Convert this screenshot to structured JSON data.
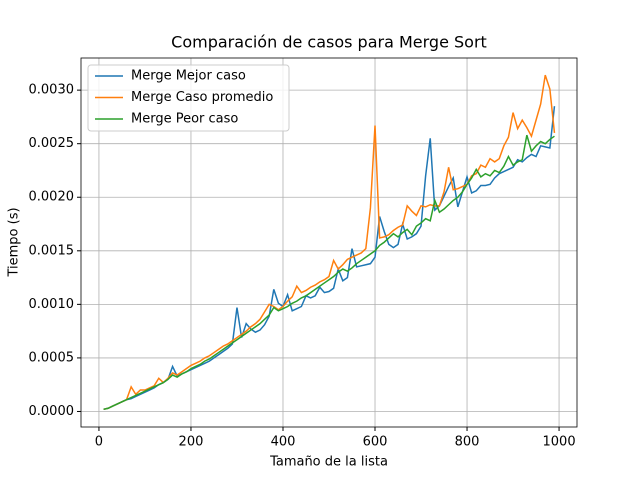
{
  "chart_data": {
    "type": "line",
    "title": "Comparación de casos para Merge Sort",
    "x_label": "Tamaño de la lista",
    "y_label": "Tiempo (s)",
    "x": [
      10,
      20,
      30,
      40,
      50,
      60,
      70,
      80,
      90,
      100,
      110,
      120,
      130,
      140,
      150,
      160,
      170,
      180,
      190,
      200,
      210,
      220,
      230,
      240,
      250,
      260,
      270,
      280,
      290,
      300,
      310,
      320,
      330,
      340,
      350,
      360,
      370,
      380,
      390,
      400,
      410,
      420,
      430,
      440,
      450,
      460,
      470,
      480,
      490,
      500,
      510,
      520,
      530,
      540,
      550,
      560,
      570,
      580,
      590,
      600,
      610,
      620,
      630,
      640,
      650,
      660,
      670,
      680,
      690,
      700,
      710,
      720,
      730,
      740,
      750,
      760,
      770,
      780,
      790,
      800,
      810,
      820,
      830,
      840,
      850,
      860,
      870,
      880,
      890,
      900,
      910,
      920,
      930,
      940,
      950,
      960,
      970,
      980,
      990
    ],
    "series": [
      {
        "name": "Merge Mejor caso",
        "color": "#1f77b4",
        "values": [
          2e-05,
          3e-05,
          5e-05,
          7e-05,
          9e-05,
          0.00011,
          0.00012,
          0.00014,
          0.00016,
          0.00018,
          0.0002,
          0.00022,
          0.00025,
          0.00027,
          0.0003,
          0.00042,
          0.00033,
          0.00035,
          0.00037,
          0.00039,
          0.00041,
          0.00043,
          0.00045,
          0.00047,
          0.0005,
          0.00053,
          0.00056,
          0.00059,
          0.00063,
          0.00097,
          0.00069,
          0.00082,
          0.00077,
          0.00074,
          0.00076,
          0.00081,
          0.00089,
          0.00114,
          0.00101,
          0.00098,
          0.00109,
          0.00094,
          0.00096,
          0.00098,
          0.00108,
          0.00106,
          0.00108,
          0.00116,
          0.00111,
          0.00112,
          0.00115,
          0.00133,
          0.00122,
          0.00125,
          0.00152,
          0.00135,
          0.00136,
          0.00137,
          0.00138,
          0.00144,
          0.00182,
          0.00168,
          0.00156,
          0.00153,
          0.00156,
          0.00175,
          0.00161,
          0.00163,
          0.00166,
          0.00173,
          0.0022,
          0.00255,
          0.00188,
          0.00192,
          0.00201,
          0.0021,
          0.00218,
          0.00191,
          0.00205,
          0.00219,
          0.00204,
          0.00206,
          0.00211,
          0.00211,
          0.00212,
          0.00218,
          0.00222,
          0.00224,
          0.00226,
          0.00228,
          0.00235,
          0.00233,
          0.00237,
          0.0024,
          0.00238,
          0.00248,
          0.00247,
          0.00246,
          0.00285
        ]
      },
      {
        "name": "Merge Caso promedio",
        "color": "#ff7f0e",
        "values": [
          2e-05,
          3e-05,
          5e-05,
          7e-05,
          9e-05,
          0.00011,
          0.00023,
          0.00016,
          0.0002,
          0.0002,
          0.00022,
          0.00024,
          0.00031,
          0.00027,
          0.00031,
          0.00036,
          0.00034,
          0.00037,
          0.0004,
          0.00043,
          0.00045,
          0.00047,
          0.0005,
          0.00052,
          0.00055,
          0.00058,
          0.00061,
          0.00063,
          0.00066,
          0.00069,
          0.00072,
          0.00075,
          0.00079,
          0.00082,
          0.00086,
          0.00093,
          0.001,
          0.00098,
          0.00095,
          0.00098,
          0.00103,
          0.00107,
          0.00117,
          0.00111,
          0.00113,
          0.00116,
          0.00118,
          0.00121,
          0.00123,
          0.00126,
          0.00141,
          0.00133,
          0.00137,
          0.00142,
          0.00144,
          0.00146,
          0.00148,
          0.00152,
          0.0019,
          0.00267,
          0.00162,
          0.00163,
          0.00165,
          0.00169,
          0.00172,
          0.00174,
          0.00192,
          0.00187,
          0.00183,
          0.00192,
          0.00191,
          0.00193,
          0.00192,
          0.00192,
          0.00205,
          0.00228,
          0.00207,
          0.00208,
          0.0021,
          0.00212,
          0.0022,
          0.00222,
          0.0023,
          0.00228,
          0.00236,
          0.00233,
          0.00236,
          0.00248,
          0.00256,
          0.00279,
          0.00264,
          0.00272,
          0.00265,
          0.00257,
          0.00272,
          0.00287,
          0.00314,
          0.00301,
          0.0026
        ]
      },
      {
        "name": "Merge Peor caso",
        "color": "#2ca02c",
        "values": [
          2e-05,
          3e-05,
          5e-05,
          7e-05,
          9e-05,
          0.00011,
          0.00013,
          0.00015,
          0.00017,
          0.00019,
          0.00021,
          0.00023,
          0.00025,
          0.00027,
          0.0003,
          0.00034,
          0.00032,
          0.00035,
          0.00037,
          0.0004,
          0.00042,
          0.00044,
          0.00047,
          0.00049,
          0.00052,
          0.00055,
          0.00058,
          0.00061,
          0.00064,
          0.00067,
          0.0007,
          0.00073,
          0.00076,
          0.00079,
          0.00082,
          0.00086,
          0.0009,
          0.00097,
          0.00094,
          0.00096,
          0.00098,
          0.00101,
          0.00103,
          0.00106,
          0.00108,
          0.00111,
          0.00114,
          0.00117,
          0.0012,
          0.00123,
          0.00126,
          0.0013,
          0.00133,
          0.00131,
          0.00134,
          0.00138,
          0.00141,
          0.00144,
          0.00147,
          0.0015,
          0.00155,
          0.00158,
          0.00162,
          0.00166,
          0.00163,
          0.00167,
          0.0017,
          0.00165,
          0.00173,
          0.00176,
          0.0018,
          0.00178,
          0.00197,
          0.00186,
          0.00189,
          0.00193,
          0.00197,
          0.002,
          0.00205,
          0.00212,
          0.00218,
          0.00226,
          0.00219,
          0.00222,
          0.0022,
          0.00225,
          0.00223,
          0.00229,
          0.00238,
          0.0023,
          0.00233,
          0.00235,
          0.00258,
          0.00243,
          0.00248,
          0.00252,
          0.0025,
          0.00254,
          0.00257
        ]
      }
    ],
    "xlim": [
      -39,
      1039
    ],
    "ylim": [
      -0.000145,
      0.0033
    ],
    "xticks": [
      0,
      200,
      400,
      600,
      800,
      1000
    ],
    "yticks": [
      {
        "value": 0,
        "label": "0.0000"
      },
      {
        "value": 0.0005,
        "label": "0.0005"
      },
      {
        "value": 0.001,
        "label": "0.0010"
      },
      {
        "value": 0.0015,
        "label": "0.0015"
      },
      {
        "value": 0.002,
        "label": "0.0020"
      },
      {
        "value": 0.0025,
        "label": "0.0025"
      },
      {
        "value": 0.003,
        "label": "0.0030"
      }
    ],
    "grid": true,
    "legend": "upper left"
  }
}
